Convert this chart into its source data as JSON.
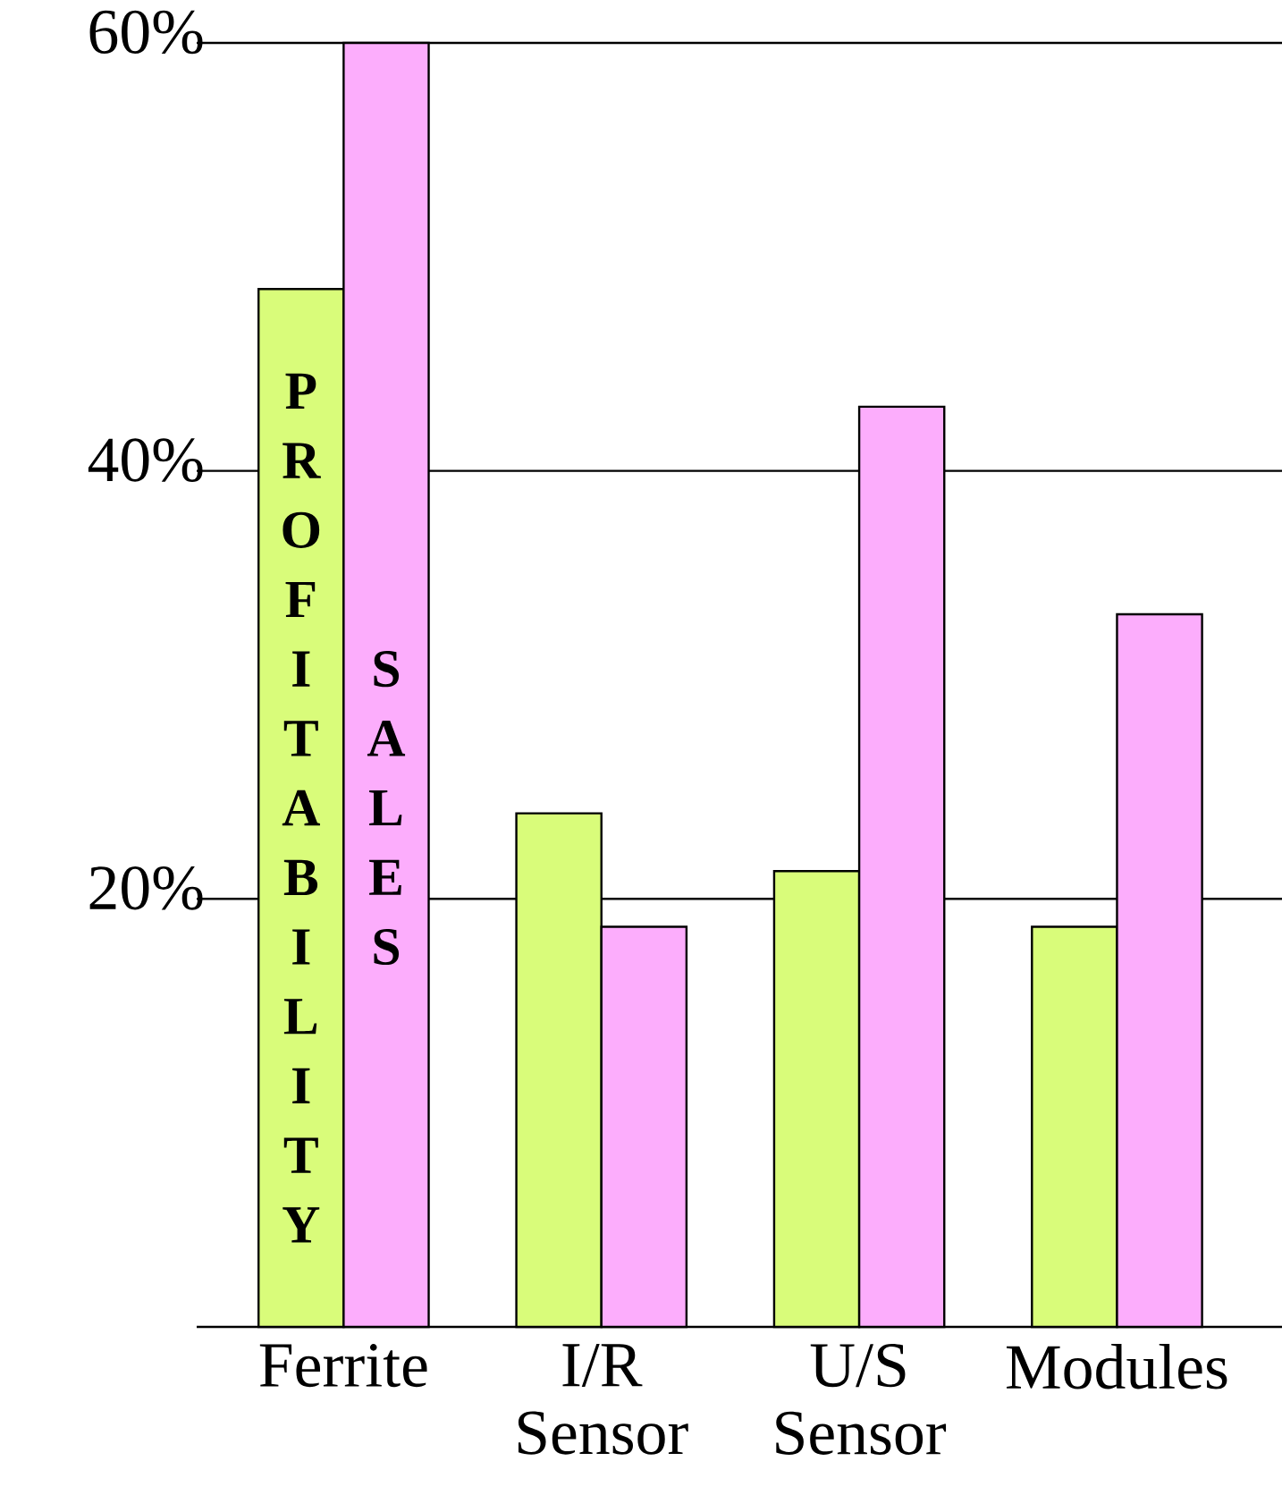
{
  "chart_data": {
    "type": "bar",
    "categories": [
      "Ferrite",
      "I/R Sensor",
      "U/S Sensor",
      "Modules"
    ],
    "series": [
      {
        "name": "PROFITABILITY",
        "color": "#d9fc7a",
        "values": [
          48.5,
          24,
          21.3,
          18.7
        ]
      },
      {
        "name": "SALES",
        "color": "#fcadfc",
        "values": [
          60,
          18.7,
          43,
          33.3
        ]
      }
    ],
    "ylim": [
      0,
      60
    ],
    "yticks": [
      {
        "value": 20,
        "label": "20%"
      },
      {
        "value": 40,
        "label": "40%"
      },
      {
        "value": 60,
        "label": "60%"
      }
    ],
    "grid": "y"
  }
}
